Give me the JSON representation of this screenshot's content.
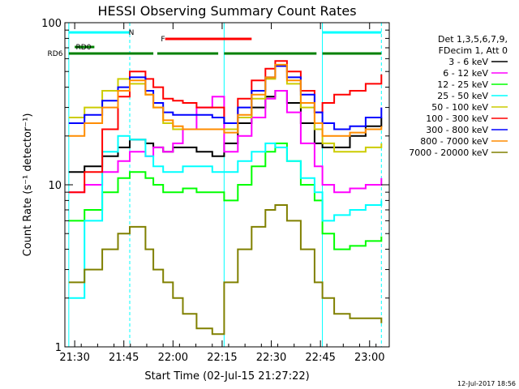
{
  "chart_data": {
    "type": "line",
    "title": "HESSI Observing Summary Count Rates",
    "xlabel": "Start Time (02-Jul-15 21:27:22)",
    "ylabel": "Count Rate (s⁻¹ detector⁻¹)",
    "y_scale": "log",
    "ylim": [
      1,
      100
    ],
    "xlim_minutes": [
      21.45,
      23.1
    ],
    "x_ticks": [
      {
        "value": 21.5,
        "label": "21:30"
      },
      {
        "value": 21.75,
        "label": "21:45"
      },
      {
        "value": 22.0,
        "label": "22:00"
      },
      {
        "value": 22.25,
        "label": "22:15"
      },
      {
        "value": 22.5,
        "label": "22:30"
      },
      {
        "value": 22.75,
        "label": "22:45"
      },
      {
        "value": 23.0,
        "label": "23:00"
      }
    ],
    "y_ticks": [
      {
        "value": 1,
        "label": "1"
      },
      {
        "value": 10,
        "label": "10"
      },
      {
        "value": 100,
        "label": "100"
      }
    ],
    "legend": {
      "placement": "right",
      "header": [
        "Det 1,3,5,6,7,9,",
        "FDecim 1, Att 0"
      ]
    },
    "series": [
      {
        "name": "3 - 6 keV",
        "color": "#000000",
        "x": [
          21.47,
          21.55,
          21.64,
          21.72,
          21.78,
          21.86,
          21.9,
          21.95,
          22.0,
          22.05,
          22.12,
          22.2,
          22.26,
          22.33,
          22.4,
          22.47,
          22.52,
          22.58,
          22.65,
          22.72,
          22.76,
          22.82,
          22.9,
          22.98,
          23.06
        ],
        "y": [
          12,
          13,
          15,
          17,
          19,
          18,
          17,
          16,
          17,
          17,
          16,
          15,
          18,
          24,
          30,
          35,
          38,
          32,
          24,
          18,
          17,
          17,
          20,
          23,
          26
        ]
      },
      {
        "name": "6 - 12 keV",
        "color": "#ff00ff",
        "x": [
          21.47,
          21.55,
          21.64,
          21.72,
          21.78,
          21.86,
          21.9,
          21.95,
          22.0,
          22.05,
          22.12,
          22.2,
          22.26,
          22.33,
          22.4,
          22.47,
          22.52,
          22.58,
          22.65,
          22.72,
          22.76,
          22.82,
          22.9,
          22.98,
          23.06
        ],
        "y": [
          9,
          10,
          12,
          14,
          16,
          15,
          17,
          16,
          18,
          22,
          30,
          35,
          16,
          20,
          26,
          34,
          38,
          28,
          18,
          13,
          10,
          9,
          9.5,
          10,
          11
        ]
      },
      {
        "name": "12 - 25 keV",
        "color": "#00ff00",
        "x": [
          21.47,
          21.55,
          21.64,
          21.72,
          21.78,
          21.86,
          21.9,
          21.95,
          22.0,
          22.05,
          22.12,
          22.2,
          22.26,
          22.33,
          22.4,
          22.47,
          22.52,
          22.58,
          22.65,
          22.72,
          22.76,
          22.82,
          22.9,
          22.98,
          23.06
        ],
        "y": [
          6,
          7,
          9,
          11,
          12,
          11,
          10,
          9,
          9,
          9.5,
          9,
          9,
          8,
          10,
          13,
          16,
          18,
          14,
          10,
          8,
          5,
          4,
          4.2,
          4.5,
          4.8
        ]
      },
      {
        "name": "25 - 50 keV",
        "color": "#00ffff",
        "x": [
          21.47,
          21.55,
          21.64,
          21.72,
          21.78,
          21.86,
          21.9,
          21.95,
          22.0,
          22.05,
          22.12,
          22.2,
          22.26,
          22.33,
          22.4,
          22.47,
          22.52,
          22.58,
          22.65,
          22.72,
          22.76,
          22.82,
          22.9,
          22.98,
          23.06
        ],
        "y": [
          2,
          6,
          16,
          20,
          19,
          15,
          13,
          12,
          12,
          13,
          13,
          12,
          12,
          14,
          16,
          18,
          17,
          14,
          11,
          9,
          6,
          6.5,
          7,
          7.5,
          8
        ]
      },
      {
        "name": "50 - 100 keV",
        "color": "#cccc00",
        "x": [
          21.47,
          21.55,
          21.64,
          21.72,
          21.78,
          21.86,
          21.9,
          21.95,
          22.0,
          22.05,
          22.12,
          22.2,
          22.26,
          22.33,
          22.4,
          22.47,
          22.52,
          22.58,
          22.65,
          22.72,
          22.76,
          22.82,
          22.9,
          22.98,
          23.06
        ],
        "y": [
          26,
          30,
          38,
          45,
          42,
          36,
          30,
          24,
          22,
          22,
          22,
          22,
          22,
          26,
          34,
          45,
          55,
          42,
          30,
          22,
          18,
          16,
          16,
          17,
          18
        ]
      },
      {
        "name": "100 - 300 keV",
        "color": "#ff0000",
        "x": [
          21.47,
          21.55,
          21.64,
          21.72,
          21.78,
          21.86,
          21.9,
          21.95,
          22.0,
          22.05,
          22.12,
          22.2,
          22.26,
          22.33,
          22.4,
          22.47,
          22.52,
          22.58,
          22.65,
          22.72,
          22.76,
          22.82,
          22.9,
          22.98,
          23.06
        ],
        "y": [
          9,
          12,
          22,
          35,
          50,
          45,
          40,
          34,
          33,
          32,
          30,
          30,
          24,
          34,
          44,
          52,
          58,
          50,
          38,
          28,
          32,
          36,
          38,
          42,
          48
        ]
      },
      {
        "name": "300 - 800 keV",
        "color": "#0000ff",
        "x": [
          21.47,
          21.55,
          21.64,
          21.72,
          21.78,
          21.86,
          21.9,
          21.95,
          22.0,
          22.05,
          22.12,
          22.2,
          22.26,
          22.33,
          22.4,
          22.47,
          22.52,
          22.58,
          22.65,
          22.72,
          22.76,
          22.82,
          22.9,
          22.98,
          23.06
        ],
        "y": [
          24,
          27,
          33,
          40,
          46,
          38,
          32,
          28,
          27,
          27,
          27,
          26,
          24,
          30,
          38,
          46,
          54,
          46,
          36,
          28,
          24,
          22,
          23,
          26,
          30
        ]
      },
      {
        "name": "800 - 7000 keV",
        "color": "#ff8c00",
        "x": [
          21.47,
          21.55,
          21.64,
          21.72,
          21.78,
          21.86,
          21.9,
          21.95,
          22.0,
          22.05,
          22.12,
          22.2,
          22.26,
          22.33,
          22.4,
          22.47,
          22.52,
          22.58,
          22.65,
          22.72,
          22.76,
          22.82,
          22.9,
          22.98,
          23.06
        ],
        "y": [
          20,
          24,
          30,
          38,
          44,
          36,
          30,
          25,
          23,
          22,
          22,
          22,
          21,
          27,
          36,
          46,
          55,
          44,
          32,
          24,
          20,
          20,
          21,
          22,
          23
        ]
      },
      {
        "name": "7000 - 20000 keV",
        "color": "#808000",
        "x": [
          21.47,
          21.55,
          21.64,
          21.72,
          21.78,
          21.86,
          21.9,
          21.95,
          22.0,
          22.05,
          22.12,
          22.2,
          22.26,
          22.33,
          22.4,
          22.47,
          22.52,
          22.58,
          22.65,
          22.72,
          22.76,
          22.82,
          22.9,
          22.98,
          23.06
        ],
        "y": [
          2.5,
          3,
          4,
          5,
          5.5,
          4,
          3,
          2.5,
          2,
          1.6,
          1.3,
          1.2,
          2.5,
          4,
          5.5,
          7,
          7.5,
          6,
          4,
          2.5,
          2,
          1.6,
          1.5,
          1.5,
          1.4
        ]
      }
    ],
    "flag_bars": [
      {
        "label": "N",
        "color": "#00ffff",
        "segments": [
          [
            21.47,
            21.78
          ],
          [
            22.76,
            23.06
          ]
        ]
      },
      {
        "label": "F",
        "color": "#ff0000",
        "segments": [
          [
            21.96,
            22.4
          ]
        ]
      },
      {
        "label": "RD0",
        "color": "#008000",
        "segments": [
          [
            21.5,
            21.6
          ]
        ]
      },
      {
        "label": "RD6",
        "color": "#008000",
        "segments": [
          [
            21.47,
            21.9
          ],
          [
            21.92,
            22.23
          ],
          [
            22.26,
            22.73
          ],
          [
            22.76,
            23.06
          ]
        ]
      }
    ],
    "vertical_markers": [
      {
        "x": 21.47,
        "color": "#00ffff",
        "style": "solid"
      },
      {
        "x": 21.78,
        "color": "#00ffff",
        "style": "dashed"
      },
      {
        "x": 22.26,
        "color": "#00ffff",
        "style": "solid"
      },
      {
        "x": 22.76,
        "color": "#00ffff",
        "style": "solid"
      },
      {
        "x": 23.06,
        "color": "#00ffff",
        "style": "dashed"
      }
    ],
    "footer_date": "12-Jul-2017 18:56"
  }
}
